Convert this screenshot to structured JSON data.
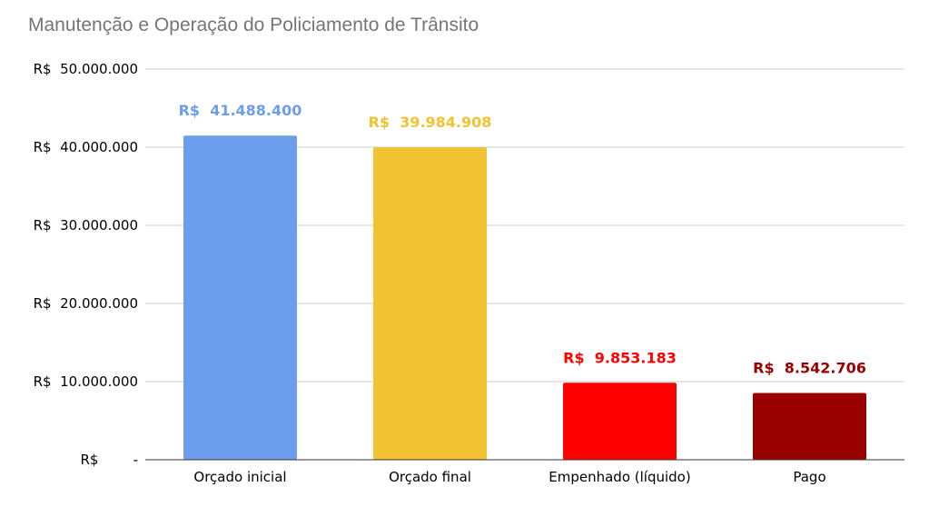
{
  "chart_data": {
    "type": "bar",
    "title": "Manutenção e Operação do Policiamento de Trânsito",
    "xlabel": "",
    "ylabel": "",
    "ylim": [
      0,
      50000000
    ],
    "y_ticks": [
      {
        "value": 0,
        "label": "R$        -"
      },
      {
        "value": 10000000,
        "label": "R$  10.000.000"
      },
      {
        "value": 20000000,
        "label": "R$  20.000.000"
      },
      {
        "value": 30000000,
        "label": "R$  30.000.000"
      },
      {
        "value": 40000000,
        "label": "R$  40.000.000"
      },
      {
        "value": 50000000,
        "label": "R$  50.000.000"
      }
    ],
    "grid": true,
    "legend": "none",
    "categories": [
      "Orçado inicial",
      "Orçado final",
      "Empenhado (líquido)",
      "Pago"
    ],
    "values": [
      41488400,
      39984908,
      9853183,
      8542706
    ],
    "data_labels": [
      "R$  41.488.400",
      "R$  39.984.908",
      "R$  9.853.183",
      "R$  8.542.706"
    ],
    "bar_colors": [
      "#6d9eeb",
      "#f1c232",
      "#ff0000",
      "#990000"
    ],
    "label_colors": [
      "#6d9eeb",
      "#f1c232",
      "#ff0000",
      "#990000"
    ]
  }
}
